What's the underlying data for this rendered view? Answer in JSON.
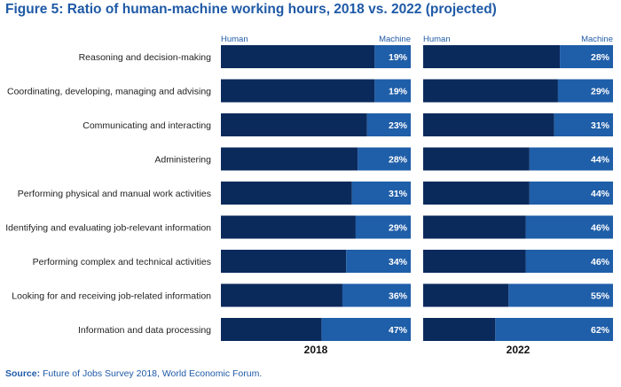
{
  "title": "Figure 5: Ratio of human-machine working hours, 2018 vs. 2022 (projected)",
  "source": {
    "label": "Source:",
    "text": "Future of Jobs Survey 2018, World Economic Forum."
  },
  "colors": {
    "human": "#0b2a5c",
    "machine": "#1f5ea8",
    "legend_text": "#1f5aa6",
    "category_text": "#222222",
    "bar_label": "#ffffff"
  },
  "chart_data": {
    "type": "bar",
    "orientation": "horizontal",
    "stacked": true,
    "value_format": "percent",
    "categories": [
      "Reasoning and decision-making",
      "Coordinating, developing, managing and advising",
      "Communicating and interacting",
      "Administering",
      "Performing physical and manual work activities",
      "Identifying and evaluating job-relevant information",
      "Performing complex and technical activities",
      "Looking for and receiving job-related information",
      "Information and data processing"
    ],
    "legend": {
      "human": "Human",
      "machine": "Machine"
    },
    "panels": [
      {
        "label": "2018",
        "machine": [
          19,
          19,
          23,
          28,
          31,
          29,
          34,
          36,
          47
        ]
      },
      {
        "label": "2022",
        "machine": [
          28,
          29,
          31,
          44,
          44,
          46,
          46,
          55,
          62
        ]
      }
    ],
    "xlim": [
      0,
      100
    ]
  }
}
